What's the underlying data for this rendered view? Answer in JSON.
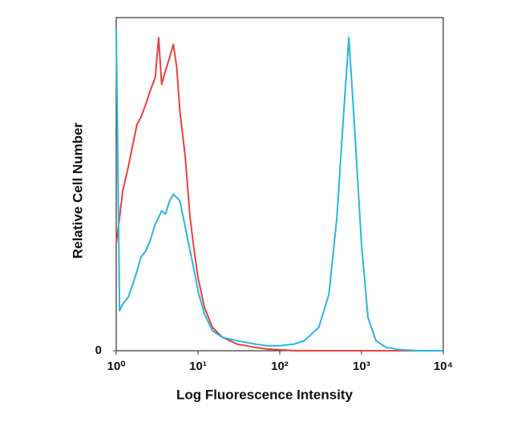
{
  "chart_data": {
    "type": "line",
    "xlabel": "Log Fluorescence Intensity",
    "ylabel": "Relative Cell Number",
    "log_x": true,
    "x": [
      1,
      1.1,
      1.2,
      1.4,
      1.6,
      1.8,
      2,
      2.3,
      2.6,
      3,
      3.3,
      3.6,
      4,
      4.5,
      5,
      5.5,
      6,
      7,
      8,
      9,
      10,
      12,
      15,
      20,
      30,
      50,
      70,
      100,
      150,
      200,
      300,
      400,
      500,
      600,
      700,
      800,
      1000,
      1200,
      1500,
      2000,
      3000,
      5000,
      10000
    ],
    "series": [
      {
        "color": "#e8413f",
        "values": [
          32,
          40,
          48,
          55,
          62,
          68,
          70,
          74,
          78,
          82,
          94,
          80,
          84,
          88,
          92,
          85,
          72,
          58,
          40,
          30,
          22,
          13,
          7,
          4,
          2,
          1,
          0.5,
          0.3,
          0,
          0,
          0,
          0,
          0,
          0,
          0,
          0,
          0,
          0,
          0,
          0,
          0,
          0,
          0
        ]
      },
      {
        "color": "#27b6e2",
        "values": [
          97,
          12,
          14,
          16,
          20,
          24,
          28,
          30,
          33,
          38,
          40,
          42,
          41,
          45,
          47,
          46,
          45,
          37,
          30,
          24,
          18,
          11,
          6,
          4,
          3,
          2,
          1.5,
          1.5,
          2,
          3,
          7,
          17,
          40,
          70,
          94,
          72,
          32,
          10,
          3,
          1,
          0.3,
          0,
          0
        ]
      }
    ],
    "xlim": [
      1,
      10000
    ],
    "xticks": [
      {
        "value": 1,
        "label": "10⁰"
      },
      {
        "value": 10,
        "label": "10¹"
      },
      {
        "value": 100,
        "label": "10²"
      },
      {
        "value": 1000,
        "label": "10³"
      },
      {
        "value": 10000,
        "label": "10⁴"
      }
    ],
    "ylim": [
      0,
      100
    ],
    "yticks": [
      0
    ]
  }
}
